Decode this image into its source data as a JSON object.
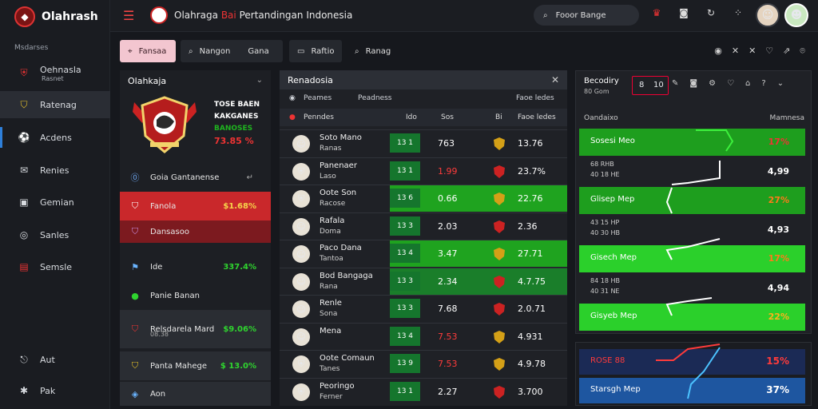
{
  "brand": {
    "name": "Olahrash"
  },
  "sidebar": {
    "section_label": "Msdarses",
    "items": [
      {
        "label": "Oehnasla",
        "sub": "Rasnet",
        "icon": "club-crest-icon"
      },
      {
        "label": "Ratenag",
        "icon": "shield-icon"
      },
      {
        "label": "Acdens",
        "icon": "football-icon"
      },
      {
        "label": "Renies",
        "icon": "chat-icon"
      },
      {
        "label": "Gemian",
        "icon": "card-icon"
      },
      {
        "label": "Sanles",
        "icon": "ball-icon"
      },
      {
        "label": "Semsle",
        "icon": "grid-icon"
      },
      {
        "label": "Aut",
        "icon": "logout-icon"
      },
      {
        "label": "Pak",
        "icon": "star-icon"
      }
    ]
  },
  "topbar": {
    "title_prefix": "Olahraga",
    "title_highlight": "Bai",
    "title_suffix": "Pertandingan Indonesia",
    "search_text": "Fooor Bange",
    "icons": [
      "trophy-icon",
      "camera-icon",
      "refresh-icon",
      "apps-icon"
    ]
  },
  "filters": {
    "buttons": [
      {
        "label": "Fansaa",
        "icon": "tag-icon"
      },
      {
        "label": "Nangon",
        "icon": "search-icon"
      },
      {
        "label": "Gana",
        "icon": ""
      },
      {
        "label": "Raftio",
        "icon": "doc-icon"
      },
      {
        "label": "Ranag",
        "icon": "search-icon"
      }
    ],
    "icons": [
      "target-icon",
      "close-icon",
      "close-icon",
      "heart-icon",
      "share-icon",
      "cart-icon"
    ]
  },
  "left_panel": {
    "title": "Olahkaja",
    "crest_lines": [
      "TOSE BAEN",
      "KAKGANES",
      "BANOSES",
      "73.85 %"
    ],
    "list_header": "Goia Gantanense",
    "rows": [
      {
        "label": "Fanola",
        "value": "$1.68%",
        "icon": "shield-icon"
      },
      {
        "label": "Dansasoo",
        "value": "",
        "icon": "shield-icon"
      },
      {
        "label": "Ide",
        "value": "337.4%",
        "icon": "flag-icon"
      },
      {
        "label": "Panie Banan",
        "value": "",
        "icon": "ball-icon"
      },
      {
        "label": "Relsdarela Mard",
        "sub": "08.38",
        "value": "$9.06%",
        "icon": "shield-icon"
      },
      {
        "label": "Panta Mahege",
        "value": "$ 13.0%",
        "icon": "shield-icon"
      },
      {
        "label": "Aon",
        "value": "",
        "icon": "ball-icon"
      }
    ]
  },
  "center": {
    "title": "Renadosia",
    "sub_cols": [
      "Peames",
      "Peadness",
      "Faoe ledes"
    ],
    "col_head": [
      "Penndes",
      "Ido",
      "Sos",
      "Bi",
      "Faoe ledes"
    ],
    "rows": [
      {
        "name": "Soto Mano",
        "sub": "Ranas",
        "score": "13 1",
        "odd": "763",
        "odd_color": "#ffffff",
        "pct": "13.76",
        "bg": "none",
        "avatar": "person-icon",
        "crest_color": "#d4a017"
      },
      {
        "name": "Panenaer",
        "sub": "Laso",
        "score": "13 1",
        "odd": "1.99",
        "odd_color": "#ff3b3b",
        "pct": "23.7%",
        "bg": "none",
        "avatar": "crest-icon",
        "crest_color": "#c22"
      },
      {
        "name": "Oote Son",
        "sub": "Racose",
        "score": "13 6",
        "odd": "0.66",
        "odd_color": "#ffffff",
        "pct": "22.76",
        "bg": "green",
        "avatar": "crest-icon",
        "crest_color": "#d4a017"
      },
      {
        "name": "Rafala",
        "sub": "Doma",
        "score": "13 3",
        "odd": "2.03",
        "odd_color": "#ffffff",
        "pct": "2.36",
        "bg": "none",
        "avatar": "person-icon",
        "crest_color": "#c22"
      },
      {
        "name": "Paco Dana",
        "sub": "Tantoa",
        "score": "13 4",
        "odd": "3.47",
        "odd_color": "#ffffff",
        "pct": "27.71",
        "bg": "green",
        "avatar": "person-icon",
        "crest_color": "#d4a017"
      },
      {
        "name": "Bod Bangaga",
        "sub": "Rana",
        "score": "13 3",
        "odd": "2.34",
        "odd_color": "#ffffff",
        "pct": "4.7.75",
        "bg": "dk",
        "avatar": "person-icon",
        "crest_color": "#c22"
      },
      {
        "name": "Renle",
        "sub": "Sona",
        "score": "13 3",
        "odd": "7.68",
        "odd_color": "#ffffff",
        "pct": "2.0.71",
        "bg": "none",
        "avatar": "person-icon",
        "crest_color": "#c22"
      },
      {
        "name": "Mena",
        "sub": "",
        "score": "13 4",
        "odd": "7.53",
        "odd_color": "#ff3b3b",
        "pct": "4.931",
        "bg": "none",
        "avatar": "person-icon",
        "crest_color": "#d4a017"
      },
      {
        "name": "Oote Comaun",
        "sub": "Tanes",
        "score": "13 9",
        "odd": "7.53",
        "odd_color": "#ff3b3b",
        "pct": "4.9.78",
        "bg": "none",
        "avatar": "crest-icon",
        "crest_color": "#d4a017"
      },
      {
        "name": "Peoringo",
        "sub": "Ferner",
        "score": "13 1",
        "odd": "2.27",
        "odd_color": "#ffffff",
        "pct": "3.700",
        "bg": "none",
        "avatar": "crest-icon",
        "crest_color": "#c22"
      }
    ]
  },
  "right_panel": {
    "title": "Becodiry",
    "sub": "80 Gom",
    "box_labels": [
      "8",
      "10"
    ],
    "col_head": [
      "Oandaixo",
      "Mamnesa"
    ],
    "rows": [
      {
        "label": "Sosesi Meo",
        "value": "17%",
        "value_color": "#e33",
        "bg": "green"
      },
      {
        "sm": "68 RHB",
        "sm2": "40 18 HE",
        "value": "4,99",
        "value_color": "#fff",
        "bg": "none"
      },
      {
        "label": "Glisep Mep",
        "value": "27%",
        "value_color": "#ff7a1a",
        "bg": "green"
      },
      {
        "sm": "43 15 HP",
        "sm2": "40 30 HB",
        "value": "4,93",
        "value_color": "#fff",
        "bg": "none"
      },
      {
        "label": "Gisech Mep",
        "value": "17%",
        "value_color": "#ff7a1a",
        "bg": "bright"
      },
      {
        "sm": "84 18 HB",
        "sm2": "40 31 NE",
        "value": "4,94",
        "value_color": "#fff",
        "bg": "none"
      },
      {
        "label": "Gisyeb Mep",
        "value": "22%",
        "value_color": "#ffb21a",
        "bg": "bright"
      }
    ]
  },
  "bottom_panel": {
    "rows": [
      {
        "label": "ROSE 88",
        "value": "15%",
        "value_color": "#ff3b3b",
        "bg": "#1b2a55",
        "label_color": "#ff3b3b"
      },
      {
        "label": "Starsgh Mep",
        "value": "37%",
        "value_color": "#ffffff",
        "bg": "#1e56a0",
        "label_color": "#ffffff"
      }
    ]
  }
}
